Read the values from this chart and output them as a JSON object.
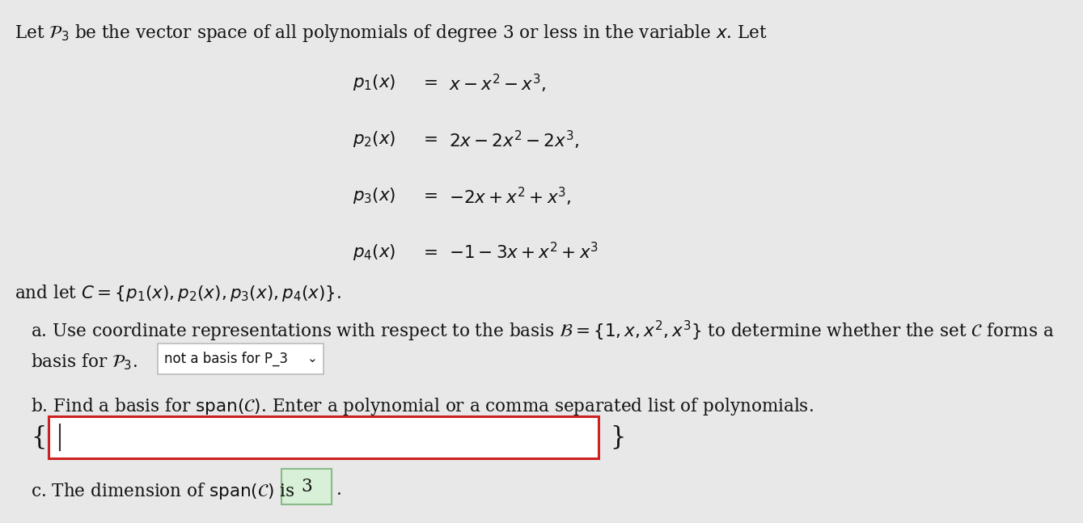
{
  "bg_color": "#e8e8e8",
  "text_color": "#111111",
  "line1": "Let $\\mathcal{P}_3$ be the vector space of all polynomials of degree 3 or less in the variable $x$. Let",
  "eq1_lhs": "$p_1(x)$",
  "eq1_eq": "$=$",
  "eq1_rhs": "$x - x^2 - x^3,$",
  "eq2_lhs": "$p_2(x)$",
  "eq2_eq": "$=$",
  "eq2_rhs": "$2x - 2x^2 - 2x^3,$",
  "eq3_lhs": "$p_3(x)$",
  "eq3_eq": "$=$",
  "eq3_rhs": "$-2x + x^2 + x^3,$",
  "eq4_lhs": "$p_4(x)$",
  "eq4_eq": "$=$",
  "eq4_rhs": "$-1 - 3x + x^2 + x^3$",
  "line_C": "and let $C = \\{p_1(x), p_2(x), p_3(x), p_4(x)\\}.$",
  "part_a_text1": "a. Use coordinate representations with respect to the basis $\\mathcal{B} = \\{1, x, x^2, x^3\\}$ to determine whether the set $\\mathcal{C}$ forms a",
  "part_a_text2": "basis for $\\mathcal{P}_3$.",
  "part_a_answer": "not a basis for P_3",
  "part_b_text": "b. Find a basis for $\\mathrm{span}(\\mathcal{C})$. Enter a polynomial or a comma separated list of polynomials.",
  "part_c_text": "c. The dimension of $\\mathrm{span}(\\mathcal{C})$ is",
  "part_c_answer": "3",
  "dropdown_bg": "#ffffff",
  "dropdown_border": "#bbbbbb",
  "input_border": "#cc2222",
  "input_bg": "#ffffff",
  "answer_c_bg": "#d8f0d8",
  "answer_c_border": "#88bb88"
}
